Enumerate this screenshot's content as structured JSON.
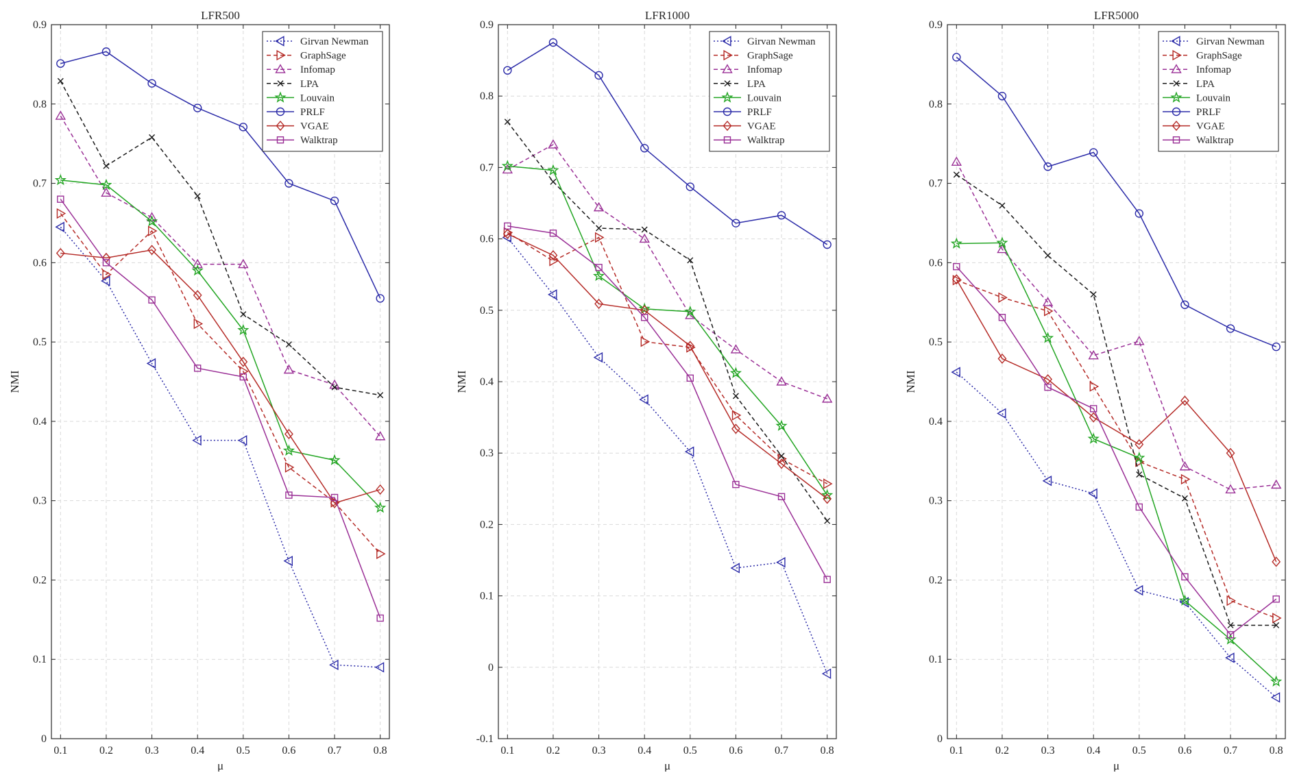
{
  "chart_data": [
    {
      "type": "line",
      "title": "LFR500",
      "xlabel": "μ",
      "ylabel": "NMI",
      "x": [
        0.1,
        0.2,
        0.3,
        0.4,
        0.5,
        0.6,
        0.7,
        0.8
      ],
      "xlim": [
        0.08,
        0.82
      ],
      "ylim": [
        0,
        0.9
      ],
      "yticks": [
        0,
        0.1,
        0.2,
        0.3,
        0.4,
        0.5,
        0.6,
        0.7,
        0.8,
        0.9
      ],
      "xtick_labels": [
        "0.1",
        "0.2",
        "0.3",
        "0.4",
        "0.5",
        "0.6",
        "0.7",
        "0.8"
      ],
      "ytick_labels": [
        "0",
        "0.1",
        "0.2",
        "0.3",
        "0.4",
        "0.5",
        "0.6",
        "0.7",
        "0.8",
        "0.9"
      ],
      "grid": true,
      "legend_position": "top-right",
      "series": [
        {
          "name": "Girvan Newman",
          "color": "#2a2aa8",
          "dash": "dotted",
          "marker": "triangle-left",
          "values": [
            0.645,
            0.577,
            0.473,
            0.376,
            0.376,
            0.224,
            0.093,
            0.09
          ]
        },
        {
          "name": "GraphSage",
          "color": "#b52b27",
          "dash": "dashed",
          "marker": "triangle-right",
          "values": [
            0.662,
            0.585,
            0.64,
            0.523,
            0.463,
            0.342,
            0.298,
            0.233
          ]
        },
        {
          "name": "Infomap",
          "color": "#9a2f96",
          "dash": "dashed",
          "marker": "triangle-up",
          "values": [
            0.785,
            0.688,
            0.657,
            0.598,
            0.598,
            0.465,
            0.446,
            0.381
          ]
        },
        {
          "name": "LPA",
          "color": "#1a1a1a",
          "dash": "dashed",
          "marker": "x",
          "values": [
            0.829,
            0.722,
            0.758,
            0.684,
            0.535,
            0.497,
            0.443,
            0.433
          ]
        },
        {
          "name": "Louvain",
          "color": "#22a522",
          "dash": "solid",
          "marker": "star",
          "values": [
            0.704,
            0.698,
            0.652,
            0.59,
            0.515,
            0.363,
            0.351,
            0.291
          ]
        },
        {
          "name": "PRLF",
          "color": "#2a2aa8",
          "dash": "solid",
          "marker": "circle",
          "values": [
            0.851,
            0.866,
            0.826,
            0.795,
            0.771,
            0.7,
            0.678,
            0.555
          ]
        },
        {
          "name": "VGAE",
          "color": "#b52b27",
          "dash": "solid",
          "marker": "diamond",
          "values": [
            0.612,
            0.606,
            0.616,
            0.559,
            0.475,
            0.384,
            0.297,
            0.314
          ]
        },
        {
          "name": "Walktrap",
          "color": "#9a2f96",
          "dash": "solid",
          "marker": "square",
          "values": [
            0.68,
            0.6,
            0.553,
            0.467,
            0.456,
            0.307,
            0.304,
            0.152
          ]
        }
      ]
    },
    {
      "type": "line",
      "title": "LFR1000",
      "xlabel": "μ",
      "ylabel": "NMI",
      "x": [
        0.1,
        0.2,
        0.3,
        0.4,
        0.5,
        0.6,
        0.7,
        0.8
      ],
      "xlim": [
        0.08,
        0.82
      ],
      "ylim": [
        -0.1,
        0.9
      ],
      "yticks": [
        -0.1,
        0,
        0.1,
        0.2,
        0.3,
        0.4,
        0.5,
        0.6,
        0.7,
        0.8,
        0.9
      ],
      "xtick_labels": [
        "0.1",
        "0.2",
        "0.3",
        "0.4",
        "0.5",
        "0.6",
        "0.7",
        "0.8"
      ],
      "ytick_labels": [
        "-0.1",
        "0",
        "0.1",
        "0.2",
        "0.3",
        "0.4",
        "0.5",
        "0.6",
        "0.7",
        "0.8",
        "0.9"
      ],
      "grid": true,
      "legend_position": "top-right",
      "series": [
        {
          "name": "Girvan Newman",
          "color": "#2a2aa8",
          "dash": "dotted",
          "marker": "triangle-left",
          "values": [
            0.602,
            0.522,
            0.434,
            0.375,
            0.302,
            0.139,
            0.147,
            -0.009
          ]
        },
        {
          "name": "GraphSage",
          "color": "#b52b27",
          "dash": "dashed",
          "marker": "triangle-right",
          "values": [
            0.609,
            0.569,
            0.602,
            0.456,
            0.448,
            0.353,
            0.292,
            0.257
          ]
        },
        {
          "name": "Infomap",
          "color": "#9a2f96",
          "dash": "dashed",
          "marker": "triangle-up",
          "values": [
            0.697,
            0.732,
            0.644,
            0.6,
            0.493,
            0.445,
            0.4,
            0.376
          ]
        },
        {
          "name": "LPA",
          "color": "#1a1a1a",
          "dash": "dashed",
          "marker": "x",
          "values": [
            0.764,
            0.68,
            0.615,
            0.613,
            0.57,
            0.38,
            0.296,
            0.205
          ]
        },
        {
          "name": "Louvain",
          "color": "#22a522",
          "dash": "solid",
          "marker": "star",
          "values": [
            0.702,
            0.696,
            0.548,
            0.502,
            0.498,
            0.412,
            0.338,
            0.241
          ]
        },
        {
          "name": "PRLF",
          "color": "#2a2aa8",
          "dash": "solid",
          "marker": "circle",
          "values": [
            0.836,
            0.875,
            0.829,
            0.727,
            0.673,
            0.622,
            0.633,
            0.592
          ]
        },
        {
          "name": "VGAE",
          "color": "#b52b27",
          "dash": "solid",
          "marker": "diamond",
          "values": [
            0.607,
            0.577,
            0.509,
            0.5,
            0.45,
            0.334,
            0.285,
            0.236
          ]
        },
        {
          "name": "Walktrap",
          "color": "#9a2f96",
          "dash": "solid",
          "marker": "square",
          "values": [
            0.618,
            0.608,
            0.56,
            0.49,
            0.405,
            0.256,
            0.239,
            0.123
          ]
        }
      ]
    },
    {
      "type": "line",
      "title": "LFR5000",
      "xlabel": "μ",
      "ylabel": "NMI",
      "x": [
        0.1,
        0.2,
        0.3,
        0.4,
        0.5,
        0.6,
        0.7,
        0.8
      ],
      "xlim": [
        0.08,
        0.82
      ],
      "ylim": [
        0,
        0.9
      ],
      "yticks": [
        0,
        0.1,
        0.2,
        0.3,
        0.4,
        0.5,
        0.6,
        0.7,
        0.8,
        0.9
      ],
      "xtick_labels": [
        "0.1",
        "0.2",
        "0.3",
        "0.4",
        "0.5",
        "0.6",
        "0.7",
        "0.8"
      ],
      "ytick_labels": [
        "0",
        "0.1",
        "0.2",
        "0.3",
        "0.4",
        "0.5",
        "0.6",
        "0.7",
        "0.8",
        "0.9"
      ],
      "grid": true,
      "legend_position": "top-right",
      "series": [
        {
          "name": "Girvan Newman",
          "color": "#2a2aa8",
          "dash": "dotted",
          "marker": "triangle-left",
          "values": [
            0.462,
            0.41,
            0.325,
            0.309,
            0.187,
            0.172,
            0.102,
            0.052
          ]
        },
        {
          "name": "GraphSage",
          "color": "#b52b27",
          "dash": "dashed",
          "marker": "triangle-right",
          "values": [
            0.578,
            0.556,
            0.539,
            0.444,
            0.349,
            0.327,
            0.174,
            0.152
          ]
        },
        {
          "name": "Infomap",
          "color": "#9a2f96",
          "dash": "dashed",
          "marker": "triangle-up",
          "values": [
            0.727,
            0.617,
            0.55,
            0.483,
            0.501,
            0.343,
            0.314,
            0.32
          ]
        },
        {
          "name": "LPA",
          "color": "#1a1a1a",
          "dash": "dashed",
          "marker": "x",
          "values": [
            0.711,
            0.672,
            0.609,
            0.56,
            0.333,
            0.303,
            0.143,
            0.143
          ]
        },
        {
          "name": "Louvain",
          "color": "#22a522",
          "dash": "solid",
          "marker": "star",
          "values": [
            0.624,
            0.625,
            0.505,
            0.378,
            0.354,
            0.174,
            0.125,
            0.072
          ]
        },
        {
          "name": "PRLF",
          "color": "#2a2aa8",
          "dash": "solid",
          "marker": "circle",
          "values": [
            0.859,
            0.81,
            0.721,
            0.739,
            0.662,
            0.547,
            0.517,
            0.494
          ]
        },
        {
          "name": "VGAE",
          "color": "#b52b27",
          "dash": "solid",
          "marker": "diamond",
          "values": [
            0.579,
            0.479,
            0.453,
            0.405,
            0.371,
            0.426,
            0.36,
            0.223
          ]
        },
        {
          "name": "Walktrap",
          "color": "#9a2f96",
          "dash": "solid",
          "marker": "square",
          "values": [
            0.595,
            0.531,
            0.443,
            0.416,
            0.292,
            0.204,
            0.131,
            0.176
          ]
        }
      ]
    }
  ]
}
